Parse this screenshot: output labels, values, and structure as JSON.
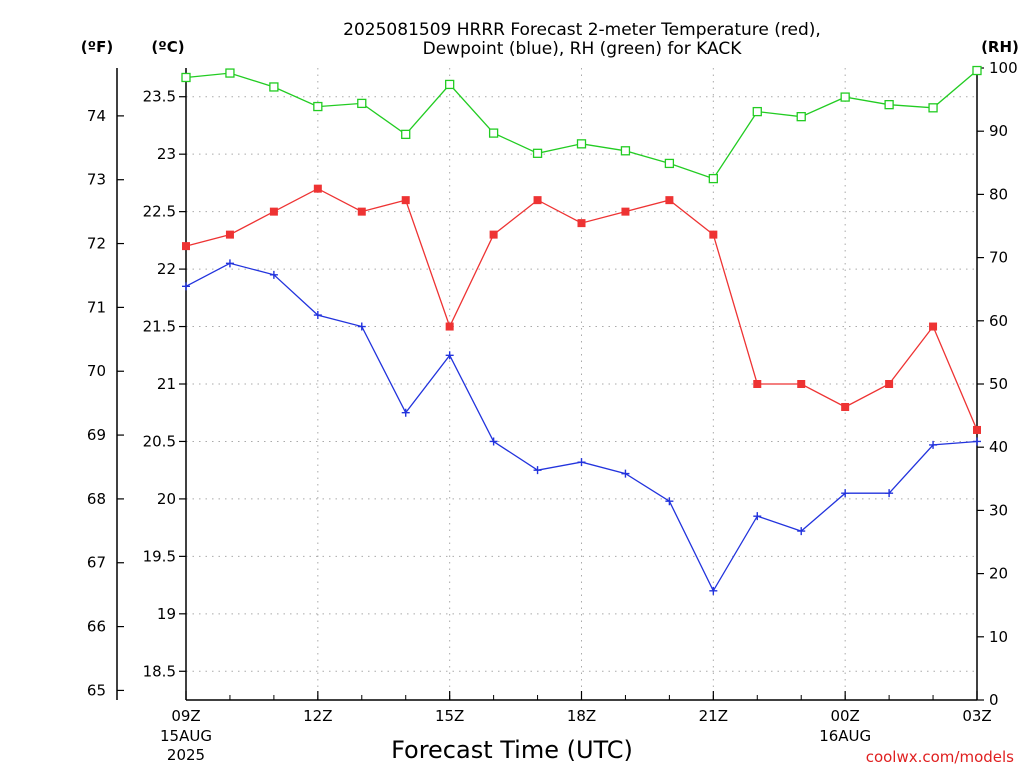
{
  "title": {
    "line1": "2025081509 HRRR Forecast 2-meter Temperature (red),",
    "line2": "Dewpoint (blue), RH (green) for KACK"
  },
  "units": {
    "fahrenheit": "(ºF)",
    "celsius": "(ºC)",
    "rh": "(RH)"
  },
  "xaxis_label": "Forecast Time (UTC)",
  "credit": "coolwx.com/models",
  "colors": {
    "temperature": "#ee3333",
    "dewpoint": "#2233dd",
    "rh": "#22cc22",
    "grid": "#aaaaaa"
  },
  "chart_data": {
    "type": "line",
    "x": [
      "09Z",
      "10Z",
      "11Z",
      "12Z",
      "13Z",
      "14Z",
      "15Z",
      "16Z",
      "17Z",
      "18Z",
      "19Z",
      "20Z",
      "21Z",
      "22Z",
      "23Z",
      "00Z",
      "01Z",
      "02Z",
      "03Z"
    ],
    "x_ticks": [
      {
        "hour": "09Z",
        "date": "15AUG",
        "year": "2025"
      },
      {
        "hour": "12Z",
        "date": "",
        "year": ""
      },
      {
        "hour": "15Z",
        "date": "",
        "year": ""
      },
      {
        "hour": "18Z",
        "date": "",
        "year": ""
      },
      {
        "hour": "21Z",
        "date": "",
        "year": ""
      },
      {
        "hour": "00Z",
        "date": "16AUG",
        "year": ""
      },
      {
        "hour": "03Z",
        "date": "",
        "year": ""
      }
    ],
    "celsius_axis": {
      "ylim": [
        18.25,
        23.75
      ],
      "ticks": [
        "18.5",
        "19",
        "19.5",
        "20",
        "20.5",
        "21",
        "21.5",
        "22",
        "22.5",
        "23",
        "23.5"
      ]
    },
    "fahrenheit_axis": {
      "ylim": [
        64.85,
        74.75
      ],
      "ticks": [
        "65",
        "66",
        "67",
        "68",
        "69",
        "70",
        "71",
        "72",
        "73",
        "74"
      ]
    },
    "rh_axis": {
      "ylim": [
        0,
        100
      ],
      "ticks": [
        "0",
        "10",
        "20",
        "30",
        "40",
        "50",
        "60",
        "70",
        "80",
        "90",
        "100"
      ]
    },
    "series": [
      {
        "name": "Temperature",
        "axis": "celsius",
        "marker": "filled-square",
        "values": [
          22.2,
          22.3,
          22.5,
          22.7,
          22.5,
          22.6,
          21.5,
          22.3,
          22.6,
          22.4,
          22.5,
          22.6,
          22.3,
          21.0,
          21.0,
          20.8,
          21.0,
          21.5,
          20.6
        ]
      },
      {
        "name": "Dewpoint",
        "axis": "celsius",
        "marker": "plus",
        "values": [
          21.85,
          22.05,
          21.95,
          21.6,
          21.5,
          20.75,
          21.25,
          20.5,
          20.25,
          20.32,
          20.22,
          19.98,
          19.2,
          19.85,
          19.72,
          20.05,
          20.05,
          20.47,
          20.5
        ]
      },
      {
        "name": "RH",
        "axis": "rh",
        "marker": "open-square",
        "values": [
          98.5,
          99.2,
          97.0,
          93.9,
          94.4,
          89.5,
          97.4,
          89.7,
          86.5,
          88.0,
          86.9,
          84.9,
          82.5,
          93.1,
          92.3,
          95.4,
          94.2,
          93.7,
          99.6
        ]
      }
    ]
  }
}
